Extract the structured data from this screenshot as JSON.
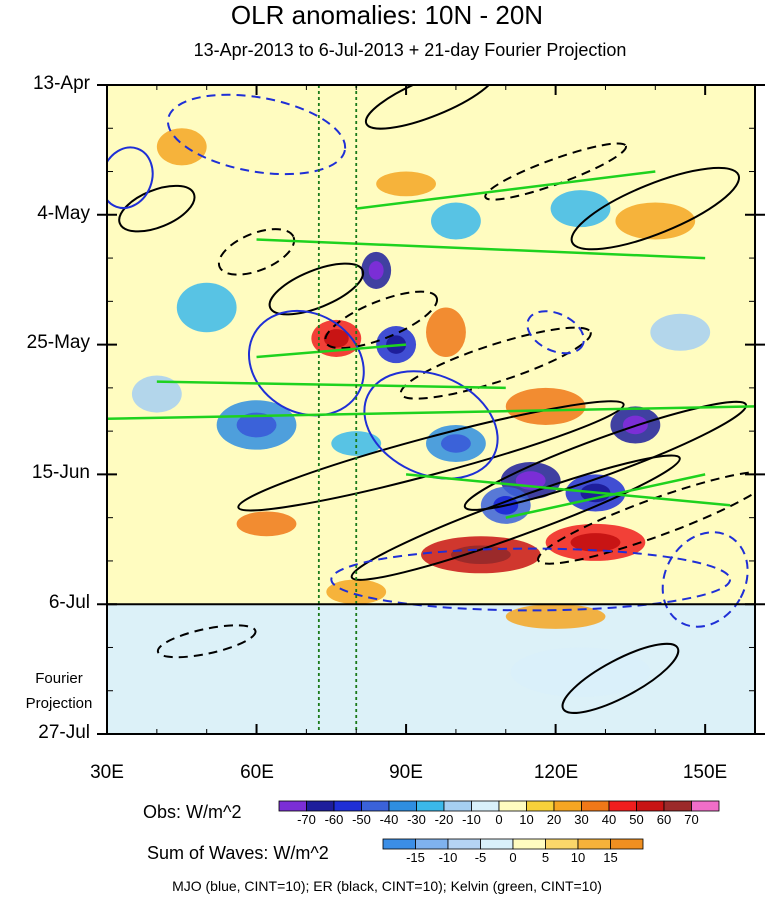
{
  "chart_data": {
    "type": "heatmap",
    "title": "OLR anomalies: 10N - 20N",
    "subtitle": "13-Apr-2013 to 6-Jul-2013 + 21-day Fourier Projection",
    "x_ticks": [
      "30E",
      "60E",
      "90E",
      "120E",
      "150E"
    ],
    "x_tick_values": [
      30,
      60,
      90,
      120,
      150
    ],
    "xlim": [
      30,
      160
    ],
    "y_ticks": [
      "13-Apr",
      "4-May",
      "25-May",
      "15-Jun",
      "6-Jul",
      "27-Jul"
    ],
    "y_tick_days": [
      0,
      21,
      42,
      63,
      84,
      105
    ],
    "ylim_days": [
      0,
      105
    ],
    "observation_end": "6-Jul",
    "projection_label_line1": "Fourier",
    "projection_label_line2": "Projection",
    "reference_lines_lon": [
      72.5,
      80
    ],
    "obs_colorbar": {
      "title": "Obs: W/m^2",
      "labels": [
        "-70",
        "-60",
        "-50",
        "-40",
        "-30",
        "-20",
        "-10",
        "0",
        "10",
        "20",
        "30",
        "40",
        "50",
        "60",
        "70"
      ],
      "colors": [
        "#7b2ed6",
        "#1e1e9b",
        "#1f2fd6",
        "#3b62d9",
        "#2f8ee0",
        "#3bb8ea",
        "#a6cff2",
        "#d9f0fa",
        "#fffcc0",
        "#f7d13a",
        "#f5a623",
        "#f07818",
        "#f01e1e",
        "#c81414",
        "#9b2a2a",
        "#f06ec8"
      ]
    },
    "waves_colorbar": {
      "title": "Sum of Waves: W/m^2",
      "labels": [
        "-15",
        "-10",
        "-5",
        "0",
        "5",
        "10",
        "15"
      ],
      "colors": [
        "#3b8ee6",
        "#7fb2ee",
        "#b5d3f3",
        "#d9f0fa",
        "#fffcc0",
        "#fbd76a",
        "#f7b23a",
        "#f08f20"
      ]
    },
    "legend_text": "MJO (blue, CINT=10); ER (black, CINT=10); Kelvin (green, CINT=10)",
    "series": [
      {
        "name": "MJO",
        "color": "#1f2fd6"
      },
      {
        "name": "ER",
        "color": "#000000"
      },
      {
        "name": "Kelvin",
        "color": "#1ed21e"
      }
    ],
    "blobs": [
      {
        "lon": 84,
        "day": 30,
        "rx": 3,
        "ry": 3,
        "v": -70
      },
      {
        "lon": 88,
        "day": 42,
        "rx": 4,
        "ry": 3,
        "v": -60
      },
      {
        "lon": 98,
        "day": 40,
        "rx": 4,
        "ry": 4,
        "v": 30
      },
      {
        "lon": 76,
        "day": 41,
        "rx": 5,
        "ry": 3,
        "v": 40
      },
      {
        "lon": 115,
        "day": 64,
        "rx": 6,
        "ry": 3,
        "v": -70
      },
      {
        "lon": 128,
        "day": 66,
        "rx": 6,
        "ry": 3,
        "v": -60
      },
      {
        "lon": 136,
        "day": 55,
        "rx": 5,
        "ry": 3,
        "v": -70
      },
      {
        "lon": 110,
        "day": 68,
        "rx": 5,
        "ry": 3,
        "v": -50
      },
      {
        "lon": 105,
        "day": 76,
        "rx": 12,
        "ry": 3,
        "v": 50
      },
      {
        "lon": 128,
        "day": 74,
        "rx": 10,
        "ry": 3,
        "v": 40
      },
      {
        "lon": 62,
        "day": 71,
        "rx": 6,
        "ry": 2,
        "v": 30
      },
      {
        "lon": 118,
        "day": 52,
        "rx": 8,
        "ry": 3,
        "v": 30
      },
      {
        "lon": 100,
        "day": 58,
        "rx": 6,
        "ry": 3,
        "v": -40
      },
      {
        "lon": 50,
        "day": 36,
        "rx": 6,
        "ry": 4,
        "v": -30
      },
      {
        "lon": 60,
        "day": 55,
        "rx": 8,
        "ry": 4,
        "v": -40
      },
      {
        "lon": 140,
        "day": 22,
        "rx": 8,
        "ry": 3,
        "v": 20
      },
      {
        "lon": 90,
        "day": 16,
        "rx": 6,
        "ry": 2,
        "v": 20
      },
      {
        "lon": 125,
        "day": 20,
        "rx": 6,
        "ry": 3,
        "v": -30
      },
      {
        "lon": 100,
        "day": 22,
        "rx": 5,
        "ry": 3,
        "v": -30
      },
      {
        "lon": 45,
        "day": 10,
        "rx": 5,
        "ry": 3,
        "v": 20
      },
      {
        "lon": 145,
        "day": 40,
        "rx": 6,
        "ry": 3,
        "v": -20
      },
      {
        "lon": 80,
        "day": 82,
        "rx": 6,
        "ry": 2,
        "v": 20
      },
      {
        "lon": 120,
        "day": 86,
        "rx": 10,
        "ry": 2,
        "v": 20
      },
      {
        "lon": 125,
        "day": 95,
        "rx": 14,
        "ry": 4,
        "v": -10
      },
      {
        "lon": 80,
        "day": 58,
        "rx": 5,
        "ry": 2,
        "v": -30
      },
      {
        "lon": 40,
        "day": 50,
        "rx": 5,
        "ry": 3,
        "v": -20
      }
    ]
  }
}
